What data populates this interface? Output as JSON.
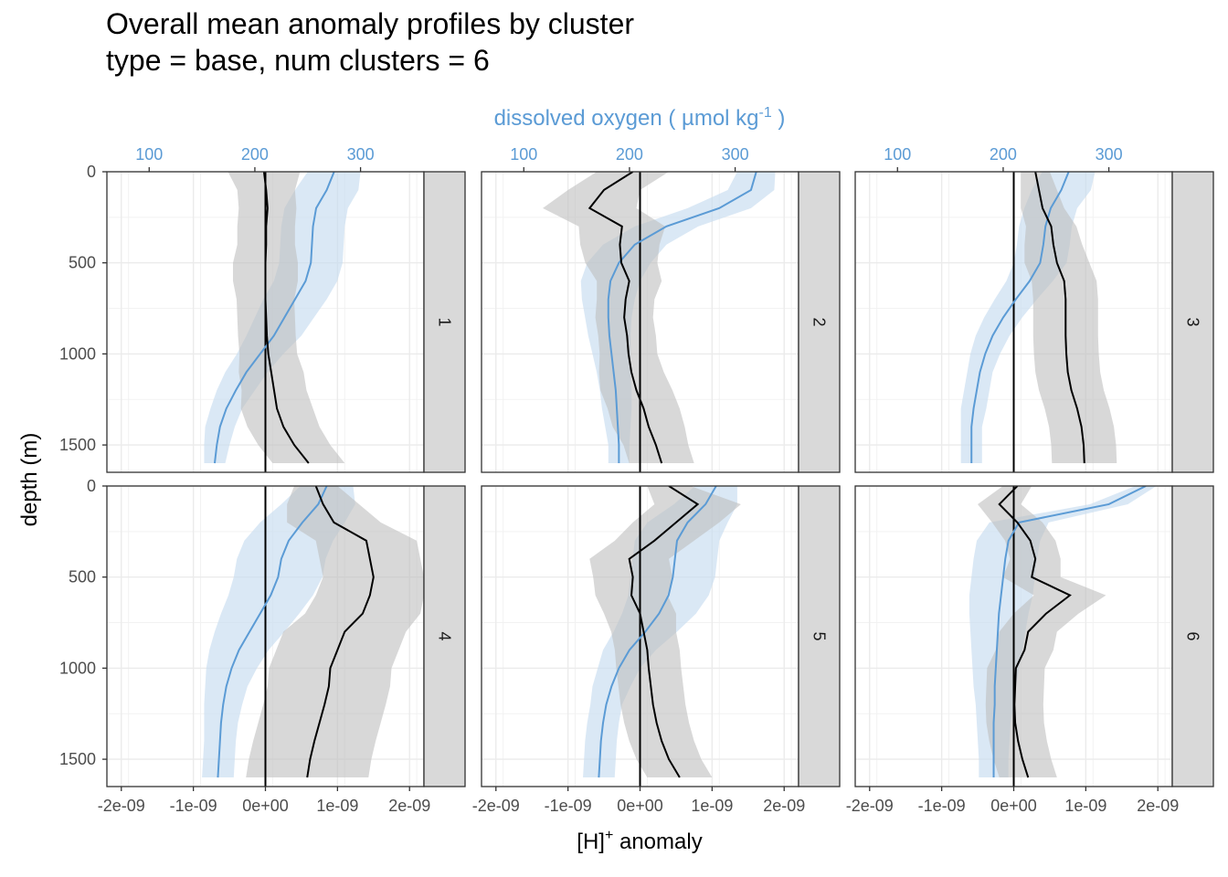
{
  "chart_data": {
    "type": "line",
    "title": "Overall mean anomaly profiles by cluster",
    "subtitle": "type = base, num clusters = 6",
    "xlabel": "[H]+ anomaly",
    "xlabel_main": "[H]",
    "xlabel_sup": "+",
    "xlabel_tail": " anomaly",
    "ylabel": "depth (m)",
    "top_axis_label": "dissolved oxygen ( µmol kg-1 )",
    "top_axis_label_main": "dissolved oxygen ( µmol kg",
    "top_axis_label_sup": "-1",
    "top_axis_label_tail": " )",
    "xlim": [
      -2.2e-09,
      2.2e-09
    ],
    "ylim": [
      0,
      1650
    ],
    "y_reversed": true,
    "top_axis_range": [
      60,
      360
    ],
    "x_ticks": [
      -2e-09,
      -1e-09,
      0,
      1e-09,
      2e-09
    ],
    "x_tick_labels": [
      "-2e-09",
      "-1e-09",
      "0e+00",
      "1e-09",
      "2e-09"
    ],
    "y_ticks": [
      0,
      500,
      1000,
      1500
    ],
    "y_tick_labels": [
      "0",
      "500",
      "1000",
      "1500"
    ],
    "top_ticks": [
      100,
      200,
      300
    ],
    "top_tick_labels": [
      "100",
      "200",
      "300"
    ],
    "grid": true,
    "colors": {
      "h_line": "#000000",
      "h_ribbon": "#bebebe",
      "oxygen_line": "#5b9bd5",
      "oxygen_ribbon": "#c6dbf0",
      "top_axis_text": "#5b9bd5",
      "strip_bg": "#d9d9d9"
    },
    "depth": [
      0,
      100,
      200,
      300,
      400,
      500,
      600,
      700,
      800,
      900,
      1000,
      1100,
      1200,
      1300,
      1400,
      1500,
      1600
    ],
    "panels": [
      {
        "label": "1",
        "h_mean": [
          -2e-11,
          1e-11,
          3e-11,
          1e-11,
          1e-11,
          0,
          0,
          0,
          1e-11,
          2e-11,
          4e-11,
          8e-11,
          1.2e-10,
          1.6e-10,
          2.5e-10,
          4e-10,
          6e-10
        ],
        "h_sd": [
          5e-10,
          4e-10,
          4e-10,
          4e-10,
          4e-10,
          4.5e-10,
          4.5e-10,
          4e-10,
          4e-10,
          4e-10,
          4e-10,
          4.5e-10,
          4.5e-10,
          5e-10,
          5e-10,
          5e-10,
          5e-10
        ],
        "o2_mean": [
          275,
          268,
          258,
          255,
          254,
          253,
          248,
          238,
          228,
          218,
          205,
          192,
          182,
          173,
          167,
          164,
          162
        ],
        "o2_sd": [
          25,
          30,
          30,
          30,
          30,
          30,
          30,
          30,
          28,
          26,
          22,
          20,
          18,
          15,
          14,
          12,
          10
        ]
      },
      {
        "label": "2",
        "h_mean": [
          -1e-10,
          -5e-10,
          -7e-10,
          -2.5e-10,
          -2.8e-10,
          -2.6e-10,
          -1.5e-10,
          -2e-10,
          -2.2e-10,
          -1.8e-10,
          -1.6e-10,
          -1.2e-10,
          -5e-11,
          5e-11,
          1.2e-10,
          2.2e-10,
          3e-10
        ],
        "h_sd": [
          5e-10,
          5e-10,
          6.5e-10,
          6e-10,
          5.5e-10,
          5e-10,
          4.5e-10,
          4e-10,
          4e-10,
          4e-10,
          4e-10,
          4.5e-10,
          5e-10,
          5e-10,
          5e-10,
          4.5e-10,
          4.5e-10
        ],
        "o2_mean": [
          320,
          315,
          285,
          235,
          205,
          190,
          182,
          180,
          180,
          181,
          183,
          185,
          187,
          188,
          189,
          190,
          190
        ],
        "o2_sd": [
          18,
          22,
          30,
          30,
          30,
          30,
          28,
          25,
          22,
          20,
          18,
          16,
          15,
          14,
          12,
          10,
          10
        ]
      },
      {
        "label": "3",
        "h_mean": [
          3e-10,
          3.5e-10,
          4e-10,
          5.2e-10,
          5.5e-10,
          6e-10,
          7e-10,
          7.2e-10,
          7.2e-10,
          7.2e-10,
          7.3e-10,
          7.5e-10,
          8e-10,
          8.8e-10,
          9.4e-10,
          9.7e-10,
          9.8e-10
        ],
        "h_sd": [
          2e-10,
          2.5e-10,
          3e-10,
          3.5e-10,
          4e-10,
          4.5e-10,
          4.5e-10,
          4.5e-10,
          4.5e-10,
          4.5e-10,
          4.5e-10,
          4.5e-10,
          4.5e-10,
          4.5e-10,
          4.5e-10,
          4.5e-10,
          4.5e-10
        ],
        "o2_mean": [
          262,
          255,
          245,
          240,
          238,
          235,
          225,
          212,
          200,
          190,
          183,
          178,
          175,
          172,
          170,
          170,
          170
        ],
        "o2_sd": [
          25,
          28,
          25,
          25,
          25,
          25,
          22,
          20,
          18,
          16,
          14,
          12,
          12,
          12,
          10,
          10,
          10
        ]
      },
      {
        "label": "4",
        "h_mean": [
          7e-10,
          8e-10,
          9.5e-10,
          1.4e-09,
          1.45e-09,
          1.5e-09,
          1.45e-09,
          1.35e-09,
          1.1e-09,
          1e-09,
          9e-10,
          8.8e-10,
          8.2e-10,
          7.5e-10,
          6.8e-10,
          6.2e-10,
          5.8e-10
        ],
        "h_sd": [
          3e-10,
          5e-10,
          6.5e-10,
          7e-10,
          7e-10,
          7e-10,
          7.5e-10,
          8e-10,
          8.5e-10,
          8.5e-10,
          8.5e-10,
          8.5e-10,
          8.5e-10,
          8.5e-10,
          8.5e-10,
          8.5e-10,
          8.5e-10
        ],
        "o2_mean": [
          268,
          260,
          245,
          232,
          225,
          222,
          215,
          205,
          195,
          185,
          178,
          173,
          170,
          168,
          167,
          166,
          165
        ],
        "o2_sd": [
          25,
          35,
          40,
          42,
          42,
          42,
          40,
          37,
          33,
          28,
          24,
          20,
          18,
          16,
          15,
          15,
          15
        ]
      },
      {
        "label": "5",
        "h_mean": [
          4e-10,
          8e-10,
          5e-10,
          2e-10,
          -1.5e-10,
          -1e-10,
          -1.2e-10,
          0,
          5e-11,
          1e-10,
          1.2e-10,
          1.5e-10,
          1.8e-10,
          2.3e-10,
          3e-10,
          4e-10,
          5.5e-10
        ],
        "h_sd": [
          3e-10,
          6e-10,
          6e-10,
          5.5e-10,
          5.5e-10,
          5.5e-10,
          5e-10,
          5e-10,
          4.5e-10,
          4.5e-10,
          4.5e-10,
          4.5e-10,
          4.5e-10,
          4.5e-10,
          4.5e-10,
          4.5e-10,
          4.5e-10
        ],
        "o2_mean": [
          282,
          272,
          255,
          245,
          243,
          241,
          237,
          228,
          215,
          200,
          190,
          183,
          178,
          175,
          173,
          172,
          171
        ],
        "o2_sd": [
          20,
          30,
          38,
          40,
          40,
          40,
          38,
          35,
          30,
          25,
          20,
          18,
          15,
          15,
          15,
          15,
          15
        ]
      },
      {
        "label": "6",
        "h_mean": [
          5e-11,
          -2e-10,
          5e-11,
          2.3e-10,
          3e-10,
          2.5e-10,
          7.8e-10,
          4.5e-10,
          2e-10,
          1.5e-10,
          3e-11,
          2e-11,
          1e-11,
          2e-11,
          6e-11,
          1.2e-10,
          2e-10
        ],
        "h_sd": [
          2e-10,
          3e-10,
          3.5e-10,
          3.5e-10,
          3.5e-10,
          4e-10,
          5e-10,
          4.5e-10,
          4e-10,
          4e-10,
          4e-10,
          4e-10,
          4e-10,
          4e-10,
          4e-10,
          4e-10,
          4e-10
        ],
        "o2_mean": [
          335,
          300,
          215,
          205,
          202,
          200,
          198,
          196,
          195,
          194,
          193,
          192,
          192,
          191,
          191,
          191,
          191
        ],
        "o2_sd": [
          10,
          18,
          28,
          30,
          30,
          30,
          30,
          28,
          26,
          24,
          22,
          20,
          18,
          16,
          15,
          14,
          14
        ]
      }
    ]
  }
}
